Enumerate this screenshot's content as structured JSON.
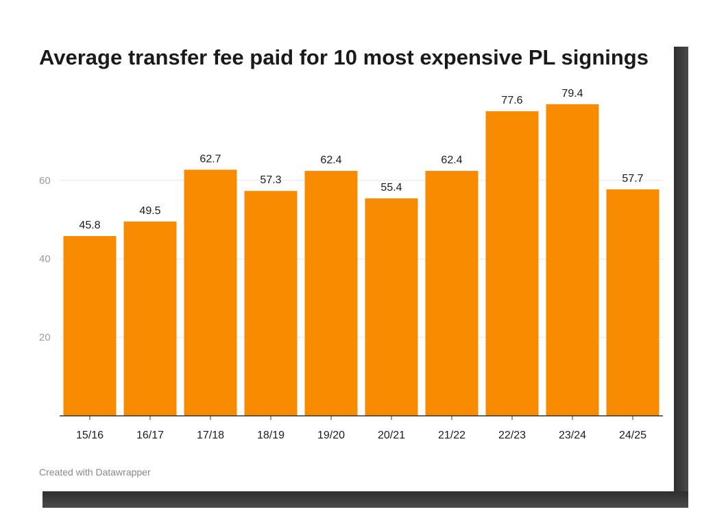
{
  "chart_data": {
    "type": "bar",
    "title": "Average transfer fee paid for 10 most expensive PL signings",
    "categories": [
      "15/16",
      "16/17",
      "17/18",
      "18/19",
      "19/20",
      "20/21",
      "21/22",
      "22/23",
      "23/24",
      "24/25"
    ],
    "values": [
      45.8,
      49.5,
      62.7,
      57.3,
      62.4,
      55.4,
      62.4,
      77.6,
      79.4,
      57.7
    ],
    "value_labels": [
      "45.8",
      "49.5",
      "62.7",
      "57.3",
      "62.4",
      "55.4",
      "62.4",
      "77.6",
      "79.4",
      "57.7"
    ],
    "yticks": [
      20,
      40,
      60
    ],
    "ylim": [
      0,
      80
    ],
    "xlabel": "",
    "ylabel": "",
    "grid": true,
    "bar_color": "#f98b00",
    "gridline_color": "#e6e6e6",
    "axis_color": "#333333"
  },
  "footer": {
    "credit": "Created with Datawrapper"
  }
}
